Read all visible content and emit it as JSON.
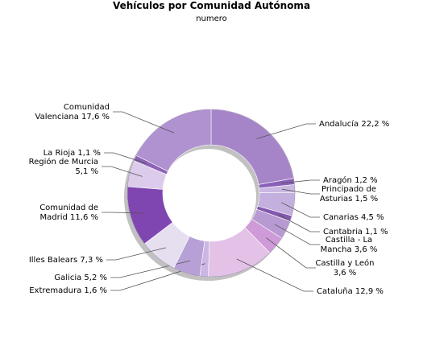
{
  "chart_data": {
    "type": "pie",
    "title": "Vehículos por Comunidad Autónoma",
    "subtitle": "numero",
    "slices": [
      {
        "label": [
          "Andalucía 22,2 %"
        ],
        "value": 22.2,
        "color": "#a584c8"
      },
      {
        "label": [
          "Aragón 1,2 %"
        ],
        "value": 1.2,
        "color": "#8a5fb8"
      },
      {
        "label": [
          "Principado de",
          "Asturias 1,5 %"
        ],
        "value": 1.5,
        "color": "#cbb8e2"
      },
      {
        "label": [
          "Canarias 4,5 %"
        ],
        "value": 4.5,
        "color": "#c3b0de"
      },
      {
        "label": [
          "Cantabria 1,1 %"
        ],
        "value": 1.1,
        "color": "#8458b0"
      },
      {
        "label": [
          "Castilla - La",
          "Mancha 3,6 %"
        ],
        "value": 3.6,
        "color": "#b89ad2"
      },
      {
        "label": [
          "Castilla y León",
          "3,6 %"
        ],
        "value": 3.6,
        "color": "#cf9ad8"
      },
      {
        "label": [
          "Cataluña 12,9 %"
        ],
        "value": 12.9,
        "color": "#e4c2e8"
      },
      {
        "label": [
          "Extremadura 1,6 %"
        ],
        "value": 1.6,
        "color": "#cbb7e3"
      },
      {
        "label": [
          "Galicia 5,2 %"
        ],
        "value": 5.2,
        "color": "#b7a0d6"
      },
      {
        "label": [
          "Illes Balears 7,3 %"
        ],
        "value": 7.3,
        "color": "#e6dff0"
      },
      {
        "label": [
          "Comunidad de",
          "Madrid 11,6 %"
        ],
        "value": 11.6,
        "color": "#7f45b0"
      },
      {
        "label": [
          "Región de Murcia",
          "5,1 %"
        ],
        "value": 5.1,
        "color": "#dccbea"
      },
      {
        "label": [
          "La Rioja 1,1 %"
        ],
        "value": 1.1,
        "color": "#8c63b8"
      },
      {
        "label": [
          "Comunidad",
          "Valenciana 17,6 %"
        ],
        "value": 17.6,
        "color": "#b092d0"
      }
    ]
  }
}
